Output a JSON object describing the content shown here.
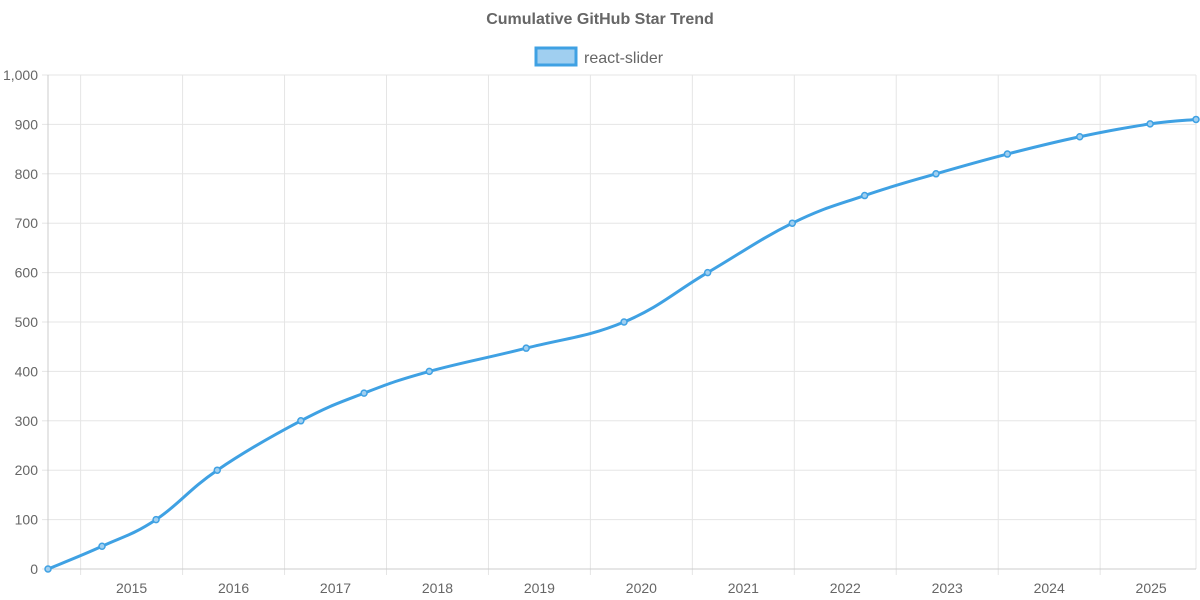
{
  "chart_data": {
    "type": "line",
    "title": "Cumulative GitHub Star Trend",
    "xlabel": "",
    "ylabel": "",
    "x_ticks": [
      "2015",
      "2016",
      "2017",
      "2018",
      "2019",
      "2020",
      "2021",
      "2022",
      "2023",
      "2024",
      "2025"
    ],
    "y_ticks": [
      "0",
      "100",
      "200",
      "300",
      "400",
      "500",
      "600",
      "700",
      "800",
      "900",
      "1,000"
    ],
    "xlim": [
      2014.68,
      2025.94
    ],
    "ylim": [
      0,
      1000
    ],
    "grid": true,
    "legend_position": "top-center",
    "series": [
      {
        "name": "react-slider",
        "color": "#3fa1e3",
        "fill_color": "#a0cff0",
        "x": [
          2014.68,
          2015.21,
          2015.74,
          2016.34,
          2017.16,
          2017.78,
          2018.42,
          2019.37,
          2020.33,
          2021.15,
          2021.98,
          2022.69,
          2023.39,
          2024.09,
          2024.8,
          2025.49,
          2025.94
        ],
        "values": [
          0,
          46,
          100,
          200,
          300,
          356,
          400,
          447,
          500,
          600,
          700,
          756,
          800,
          840,
          875,
          901,
          910
        ]
      }
    ]
  }
}
